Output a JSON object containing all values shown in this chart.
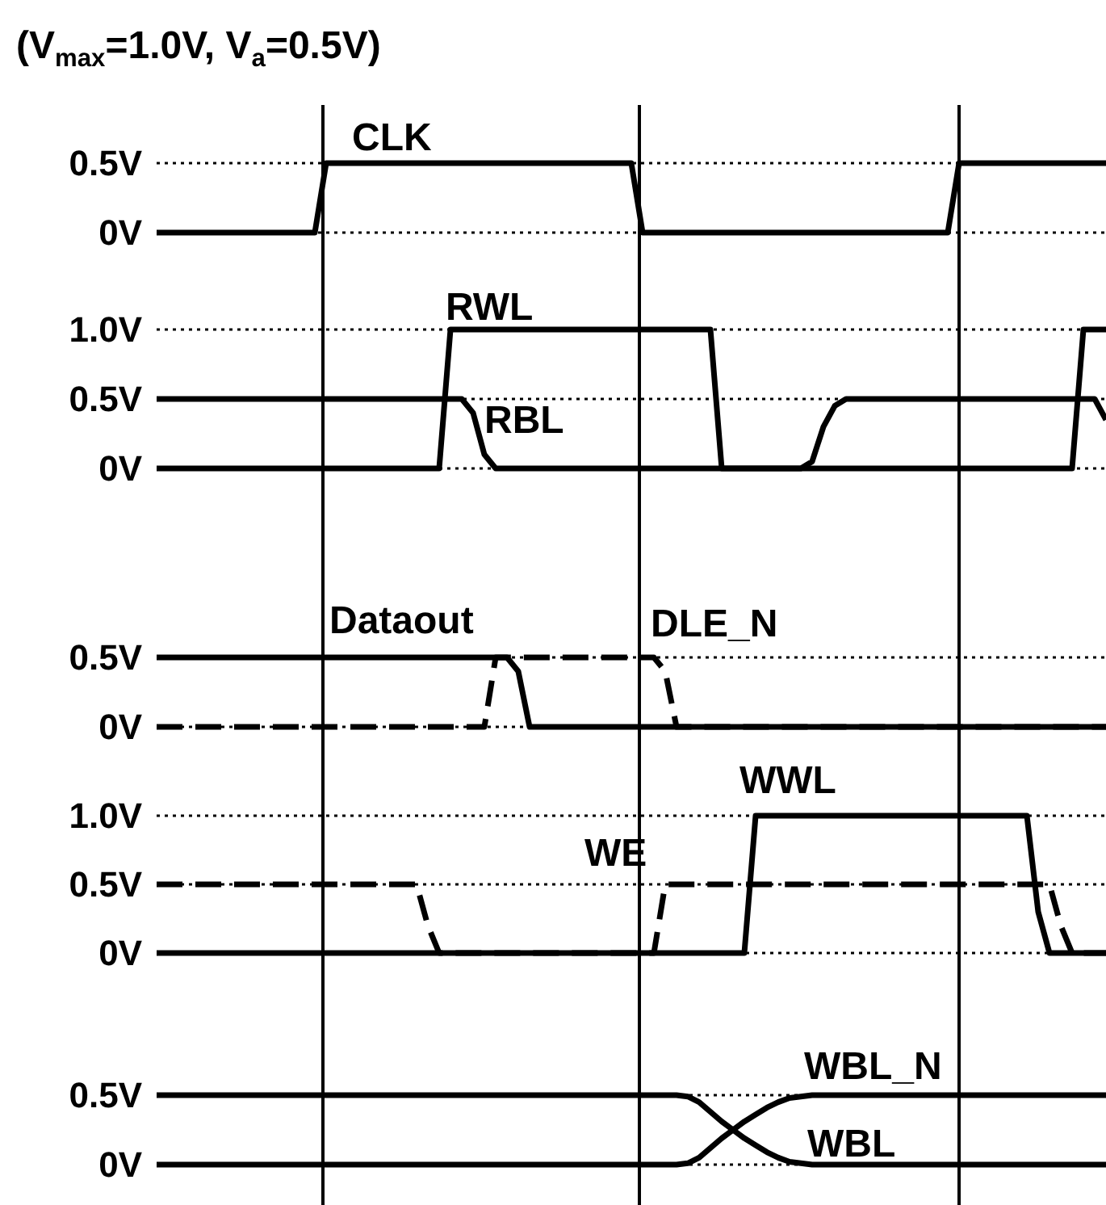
{
  "chart_data": [
    {
      "type": "line",
      "title": "(V$_{max}$=1.0V, V$_{a}$=0.5V)",
      "categories": [
        null,
        null,
        null,
        null,
        null,
        null,
        null,
        null,
        null,
        null,
        null,
        null,
        null,
        null,
        null,
        null,
        null,
        null,
        null,
        null,
        null,
        null,
        null,
        null,
        null,
        null,
        null,
        null,
        null,
        null,
        null,
        null,
        null,
        null,
        null,
        null,
        null,
        null,
        null,
        null,
        null,
        null,
        null,
        null,
        null,
        null,
        null,
        null,
        null,
        null,
        null,
        null,
        null,
        null,
        null,
        null,
        null,
        null,
        null,
        null,
        null,
        null,
        null,
        null,
        null,
        null,
        null,
        null,
        null,
        null,
        null,
        null,
        null,
        null,
        null,
        null,
        null,
        null,
        null,
        null,
        null,
        null,
        null,
        null,
        null
      ],
      "ylim": [
        0,
        0.5
      ],
      "yticks": [
        {
          "value": 0,
          "label": "0V"
        },
        {
          "value": 0.5,
          "label": "0.5V"
        }
      ],
      "tick_labels": "y",
      "grid": "y",
      "series": [
        {
          "name": "CLK",
          "color": "#000000",
          "line_style": "solid",
          "values": [
            0,
            0,
            0,
            0,
            0,
            0,
            0,
            0,
            0,
            0,
            0,
            0,
            0,
            0,
            0,
            0.5,
            0.5,
            0.5,
            0.5,
            0.5,
            0.5,
            0.5,
            0.5,
            0.5,
            0.5,
            0.5,
            0.5,
            0.5,
            0.5,
            0.5,
            0.5,
            0.5,
            0.5,
            0.5,
            0.5,
            0.5,
            0.5,
            0.5,
            0.5,
            0.5,
            0.5,
            0.5,
            0.5,
            0,
            0,
            0,
            0,
            0,
            0,
            0,
            0,
            0,
            0,
            0,
            0,
            0,
            0,
            0,
            0,
            0,
            0,
            0,
            0,
            0,
            0,
            0,
            0,
            0,
            0,
            0,
            0,
            0.5,
            0.5,
            0.5,
            0.5,
            0.5,
            0.5,
            0.5,
            0.5,
            0.5,
            0.5,
            0.5,
            0.5,
            0.5,
            0.5
          ]
        }
      ]
    },
    {
      "type": "line",
      "categories": [
        null,
        null,
        null,
        null,
        null,
        null,
        null,
        null,
        null,
        null,
        null,
        null,
        null,
        null,
        null,
        null,
        null,
        null,
        null,
        null,
        null,
        null,
        null,
        null,
        null,
        null,
        null,
        null,
        null,
        null,
        null,
        null,
        null,
        null,
        null,
        null,
        null,
        null,
        null,
        null,
        null,
        null,
        null,
        null,
        null,
        null,
        null,
        null,
        null,
        null,
        null,
        null,
        null,
        null,
        null,
        null,
        null,
        null,
        null,
        null,
        null,
        null,
        null,
        null,
        null,
        null,
        null,
        null,
        null,
        null,
        null,
        null,
        null,
        null,
        null,
        null,
        null,
        null,
        null,
        null,
        null,
        null,
        null,
        null,
        null
      ],
      "ylim": [
        0,
        1
      ],
      "yticks": [
        {
          "value": 0,
          "label": "0V"
        },
        {
          "value": 0.5,
          "label": "0.5V"
        },
        {
          "value": 1,
          "label": "1.0V"
        }
      ],
      "tick_labels": "y",
      "grid": "y",
      "series": [
        {
          "name": "RWL",
          "color": "#000000",
          "line_style": "solid",
          "values": [
            0,
            0,
            0,
            0,
            0,
            0,
            0,
            0,
            0,
            0,
            0,
            0,
            0,
            0,
            0,
            0,
            0,
            0,
            0,
            0,
            0,
            0,
            0,
            0,
            0,
            0,
            1,
            1,
            1,
            1,
            1,
            1,
            1,
            1,
            1,
            1,
            1,
            1,
            1,
            1,
            1,
            1,
            1,
            1,
            1,
            1,
            1,
            1,
            1,
            1,
            0,
            0,
            0,
            0,
            0,
            0,
            0,
            0,
            0,
            0,
            0,
            0,
            0,
            0,
            0,
            0,
            0,
            0,
            0,
            0,
            0,
            0,
            0,
            0,
            0,
            0,
            0,
            0,
            0,
            0,
            0,
            0,
            1,
            1,
            1
          ]
        },
        {
          "name": "RBL",
          "color": "#000000",
          "line_style": "solid",
          "values": [
            0.5,
            0.5,
            0.5,
            0.5,
            0.5,
            0.5,
            0.5,
            0.5,
            0.5,
            0.5,
            0.5,
            0.5,
            0.5,
            0.5,
            0.5,
            0.5,
            0.5,
            0.5,
            0.5,
            0.5,
            0.5,
            0.5,
            0.5,
            0.5,
            0.5,
            0.5,
            0.5,
            0.5,
            0.4,
            0.1,
            0,
            0,
            0,
            0,
            0,
            0,
            0,
            0,
            0,
            0,
            0,
            0,
            0,
            0,
            0,
            0,
            0,
            0,
            0,
            0,
            0,
            0,
            0,
            0,
            0,
            0,
            0,
            0,
            0.05,
            0.3,
            0.45,
            0.5,
            0.5,
            0.5,
            0.5,
            0.5,
            0.5,
            0.5,
            0.5,
            0.5,
            0.5,
            0.5,
            0.5,
            0.5,
            0.5,
            0.5,
            0.5,
            0.5,
            0.5,
            0.5,
            0.5,
            0.5,
            0.5,
            0.5,
            0.35
          ]
        }
      ]
    },
    {
      "type": "line",
      "categories": [
        null,
        null,
        null,
        null,
        null,
        null,
        null,
        null,
        null,
        null,
        null,
        null,
        null,
        null,
        null,
        null,
        null,
        null,
        null,
        null,
        null,
        null,
        null,
        null,
        null,
        null,
        null,
        null,
        null,
        null,
        null,
        null,
        null,
        null,
        null,
        null,
        null,
        null,
        null,
        null,
        null,
        null,
        null,
        null,
        null,
        null,
        null,
        null,
        null,
        null,
        null,
        null,
        null,
        null,
        null,
        null,
        null,
        null,
        null,
        null,
        null,
        null,
        null,
        null,
        null,
        null,
        null,
        null,
        null,
        null,
        null,
        null,
        null,
        null,
        null,
        null,
        null,
        null,
        null,
        null,
        null,
        null,
        null,
        null,
        null
      ],
      "ylim": [
        0,
        0.5
      ],
      "yticks": [
        {
          "value": 0,
          "label": "0V"
        },
        {
          "value": 0.5,
          "label": "0.5V"
        }
      ],
      "tick_labels": "y",
      "grid": "y",
      "series": [
        {
          "name": "Dataout",
          "color": "#000000",
          "line_style": "solid",
          "values": [
            0.5,
            0.5,
            0.5,
            0.5,
            0.5,
            0.5,
            0.5,
            0.5,
            0.5,
            0.5,
            0.5,
            0.5,
            0.5,
            0.5,
            0.5,
            0.5,
            0.5,
            0.5,
            0.5,
            0.5,
            0.5,
            0.5,
            0.5,
            0.5,
            0.5,
            0.5,
            0.5,
            0.5,
            0.5,
            0.5,
            0.5,
            0.5,
            0.4,
            0,
            0,
            0,
            0,
            0,
            0,
            0,
            0,
            0,
            0,
            0,
            0,
            0,
            0,
            0,
            0,
            0,
            0,
            0,
            0,
            0,
            0,
            0,
            0,
            0,
            0,
            0,
            0,
            0,
            0,
            0,
            0,
            0,
            0,
            0,
            0,
            0,
            0,
            0,
            0,
            0,
            0,
            0,
            0,
            0,
            0,
            0,
            0,
            0,
            0,
            0,
            0
          ]
        },
        {
          "name": "DLE_N",
          "color": "#000000",
          "line_style": "dashed",
          "values": [
            0,
            0,
            0,
            0,
            0,
            0,
            0,
            0,
            0,
            0,
            0,
            0,
            0,
            0,
            0,
            0,
            0,
            0,
            0,
            0,
            0,
            0,
            0,
            0,
            0,
            0,
            0,
            0,
            0,
            0,
            0.5,
            0.5,
            0.5,
            0.5,
            0.5,
            0.5,
            0.5,
            0.5,
            0.5,
            0.5,
            0.5,
            0.5,
            0.5,
            0.5,
            0.5,
            0.4,
            0,
            0,
            0,
            0,
            0,
            0,
            0,
            0,
            0,
            0,
            0,
            0,
            0,
            0,
            0,
            0,
            0,
            0,
            0,
            0,
            0,
            0,
            0,
            0,
            0,
            0,
            0,
            0,
            0,
            0,
            0,
            0,
            0,
            0,
            0,
            0,
            0,
            0,
            0
          ]
        }
      ]
    },
    {
      "type": "line",
      "categories": [
        null,
        null,
        null,
        null,
        null,
        null,
        null,
        null,
        null,
        null,
        null,
        null,
        null,
        null,
        null,
        null,
        null,
        null,
        null,
        null,
        null,
        null,
        null,
        null,
        null,
        null,
        null,
        null,
        null,
        null,
        null,
        null,
        null,
        null,
        null,
        null,
        null,
        null,
        null,
        null,
        null,
        null,
        null,
        null,
        null,
        null,
        null,
        null,
        null,
        null,
        null,
        null,
        null,
        null,
        null,
        null,
        null,
        null,
        null,
        null,
        null,
        null,
        null,
        null,
        null,
        null,
        null,
        null,
        null,
        null,
        null,
        null,
        null,
        null,
        null,
        null,
        null,
        null,
        null,
        null,
        null,
        null,
        null,
        null,
        null
      ],
      "ylim": [
        0,
        1
      ],
      "yticks": [
        {
          "value": 0,
          "label": "0V"
        },
        {
          "value": 0.5,
          "label": "0.5V"
        },
        {
          "value": 1,
          "label": "1.0V"
        }
      ],
      "tick_labels": "y",
      "grid": "y",
      "series": [
        {
          "name": "WWL",
          "color": "#000000",
          "line_style": "solid",
          "values": [
            0,
            0,
            0,
            0,
            0,
            0,
            0,
            0,
            0,
            0,
            0,
            0,
            0,
            0,
            0,
            0,
            0,
            0,
            0,
            0,
            0,
            0,
            0,
            0,
            0,
            0,
            0,
            0,
            0,
            0,
            0,
            0,
            0,
            0,
            0,
            0,
            0,
            0,
            0,
            0,
            0,
            0,
            0,
            0,
            0,
            0,
            0,
            0,
            0,
            0,
            0,
            0,
            0,
            1,
            1,
            1,
            1,
            1,
            1,
            1,
            1,
            1,
            1,
            1,
            1,
            1,
            1,
            1,
            1,
            1,
            1,
            1,
            1,
            1,
            1,
            1,
            1,
            1,
            0.3,
            0,
            0,
            0,
            0,
            0,
            0
          ]
        },
        {
          "name": "WE",
          "color": "#000000",
          "line_style": "dashed",
          "values": [
            0.5,
            0.5,
            0.5,
            0.5,
            0.5,
            0.5,
            0.5,
            0.5,
            0.5,
            0.5,
            0.5,
            0.5,
            0.5,
            0.5,
            0.5,
            0.5,
            0.5,
            0.5,
            0.5,
            0.5,
            0.5,
            0.5,
            0.5,
            0.5,
            0.2,
            0,
            0,
            0,
            0,
            0,
            0,
            0,
            0,
            0,
            0,
            0,
            0,
            0,
            0,
            0,
            0,
            0,
            0,
            0,
            0,
            0.5,
            0.5,
            0.5,
            0.5,
            0.5,
            0.5,
            0.5,
            0.5,
            0.5,
            0.5,
            0.5,
            0.5,
            0.5,
            0.5,
            0.5,
            0.5,
            0.5,
            0.5,
            0.5,
            0.5,
            0.5,
            0.5,
            0.5,
            0.5,
            0.5,
            0.5,
            0.5,
            0.5,
            0.5,
            0.5,
            0.5,
            0.5,
            0.5,
            0.5,
            0.5,
            0.2,
            0,
            0,
            0,
            0
          ]
        }
      ]
    },
    {
      "type": "line",
      "categories": [
        null,
        null,
        null,
        null,
        null,
        null,
        null,
        null,
        null,
        null,
        null,
        null,
        null,
        null,
        null,
        null,
        null,
        null,
        null,
        null,
        null,
        null,
        null,
        null,
        null,
        null,
        null,
        null,
        null,
        null,
        null,
        null,
        null,
        null,
        null,
        null,
        null,
        null,
        null,
        null,
        null,
        null,
        null,
        null,
        null,
        null,
        null,
        null,
        null,
        null,
        null,
        null,
        null,
        null,
        null,
        null,
        null,
        null,
        null,
        null,
        null,
        null,
        null,
        null,
        null,
        null,
        null,
        null,
        null,
        null,
        null,
        null,
        null,
        null,
        null,
        null,
        null,
        null,
        null,
        null,
        null,
        null,
        null,
        null,
        null
      ],
      "ylim": [
        0,
        0.5
      ],
      "yticks": [
        {
          "value": 0,
          "label": "0V"
        },
        {
          "value": 0.5,
          "label": "0.5V"
        }
      ],
      "tick_labels": "y",
      "grid": "y",
      "series": [
        {
          "name": "WBL_N",
          "color": "#000000",
          "line_style": "solid",
          "values": [
            0,
            0,
            0,
            0,
            0,
            0,
            0,
            0,
            0,
            0,
            0,
            0,
            0,
            0,
            0,
            0,
            0,
            0,
            0,
            0,
            0,
            0,
            0,
            0,
            0,
            0,
            0,
            0,
            0,
            0,
            0,
            0,
            0,
            0,
            0,
            0,
            0,
            0,
            0,
            0,
            0,
            0,
            0,
            0,
            0,
            0,
            0,
            0.01,
            0.05,
            0.12,
            0.19,
            0.25,
            0.31,
            0.36,
            0.41,
            0.45,
            0.48,
            0.49,
            0.5,
            0.5,
            0.5,
            0.5,
            0.5,
            0.5,
            0.5,
            0.5,
            0.5,
            0.5,
            0.5,
            0.5,
            0.5,
            0.5,
            0.5,
            0.5,
            0.5,
            0.5,
            0.5,
            0.5,
            0.5,
            0.5,
            0.5,
            0.5,
            0.5,
            0.5,
            0.5
          ]
        },
        {
          "name": "WBL",
          "color": "#000000",
          "line_style": "solid",
          "values": [
            0.5,
            0.5,
            0.5,
            0.5,
            0.5,
            0.5,
            0.5,
            0.5,
            0.5,
            0.5,
            0.5,
            0.5,
            0.5,
            0.5,
            0.5,
            0.5,
            0.5,
            0.5,
            0.5,
            0.5,
            0.5,
            0.5,
            0.5,
            0.5,
            0.5,
            0.5,
            0.5,
            0.5,
            0.5,
            0.5,
            0.5,
            0.5,
            0.5,
            0.5,
            0.5,
            0.5,
            0.5,
            0.5,
            0.5,
            0.5,
            0.5,
            0.5,
            0.5,
            0.5,
            0.5,
            0.5,
            0.5,
            0.49,
            0.45,
            0.38,
            0.31,
            0.25,
            0.19,
            0.14,
            0.09,
            0.05,
            0.02,
            0.01,
            0,
            0,
            0,
            0,
            0,
            0,
            0,
            0,
            0,
            0,
            0,
            0,
            0,
            0,
            0,
            0,
            0,
            0,
            0,
            0,
            0,
            0,
            0,
            0,
            0,
            0,
            0
          ]
        }
      ]
    }
  ]
}
